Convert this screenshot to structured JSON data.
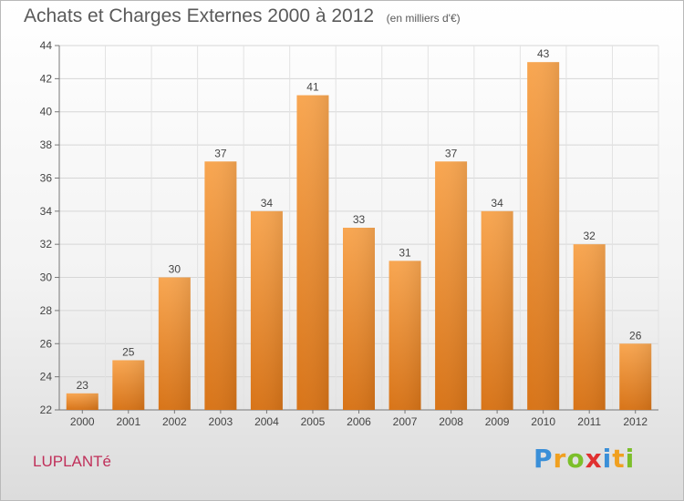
{
  "header": {
    "title": "Achats et Charges Externes 2000 à 2012",
    "subtitle": "(en milliers d'€)"
  },
  "footer": {
    "commune": "LUPLANTé",
    "logo": "Proxiti"
  },
  "logo_letters": [
    {
      "ch": "P",
      "color": "#3a8fd8"
    },
    {
      "ch": "r",
      "color": "#f0a020"
    },
    {
      "ch": "o",
      "color": "#7cbf2a"
    },
    {
      "ch": "x",
      "color": "#e03030"
    },
    {
      "ch": "i",
      "color": "#3a8fd8"
    },
    {
      "ch": "t",
      "color": "#f0a020"
    },
    {
      "ch": "i",
      "color": "#7cbf2a"
    }
  ],
  "chart_data": {
    "type": "bar",
    "categories": [
      "2000",
      "2001",
      "2002",
      "2003",
      "2004",
      "2005",
      "2006",
      "2007",
      "2008",
      "2009",
      "2010",
      "2011",
      "2012"
    ],
    "values": [
      23,
      25,
      30,
      37,
      34,
      41,
      33,
      31,
      37,
      34,
      43,
      32,
      26
    ],
    "ylim": [
      22,
      44
    ],
    "yticks": [
      22,
      24,
      26,
      28,
      30,
      32,
      34,
      36,
      38,
      40,
      42,
      44
    ],
    "grid": true,
    "bar_color": "#f08c2a",
    "data_labels": true
  }
}
